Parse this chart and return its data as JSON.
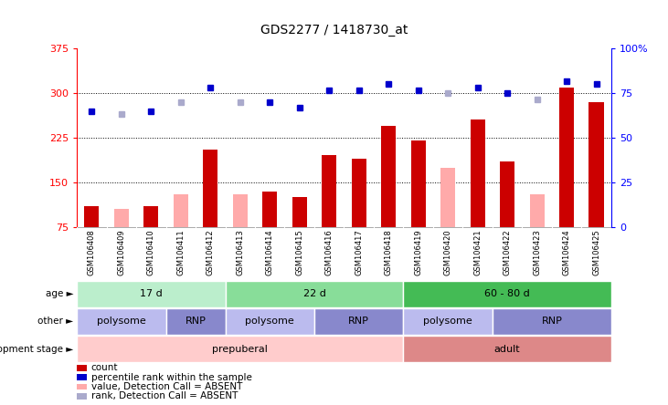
{
  "title": "GDS2277 / 1418730_at",
  "samples": [
    "GSM106408",
    "GSM106409",
    "GSM106410",
    "GSM106411",
    "GSM106412",
    "GSM106413",
    "GSM106414",
    "GSM106415",
    "GSM106416",
    "GSM106417",
    "GSM106418",
    "GSM106419",
    "GSM106420",
    "GSM106421",
    "GSM106422",
    "GSM106423",
    "GSM106424",
    "GSM106425"
  ],
  "bar_values": [
    110,
    null,
    110,
    null,
    205,
    null,
    135,
    125,
    195,
    190,
    245,
    220,
    null,
    255,
    185,
    null,
    310,
    285
  ],
  "bar_absent_values": [
    null,
    105,
    null,
    130,
    null,
    130,
    null,
    null,
    null,
    null,
    null,
    null,
    175,
    null,
    null,
    130,
    null,
    null
  ],
  "rank_values": [
    270,
    null,
    270,
    null,
    310,
    null,
    285,
    275,
    305,
    305,
    315,
    305,
    null,
    310,
    300,
    null,
    320,
    315
  ],
  "rank_absent_values": [
    null,
    265,
    null,
    285,
    null,
    285,
    null,
    null,
    null,
    null,
    null,
    null,
    300,
    null,
    null,
    290,
    null,
    null
  ],
  "ylim_left": [
    75,
    375
  ],
  "ylim_right": [
    0,
    100
  ],
  "yticks_left": [
    75,
    150,
    225,
    300,
    375
  ],
  "yticks_right": [
    0,
    25,
    50,
    75,
    100
  ],
  "ytick_labels_left": [
    "75",
    "150",
    "225",
    "300",
    "375"
  ],
  "ytick_labels_right": [
    "0",
    "25",
    "50",
    "75",
    "100%"
  ],
  "bar_color": "#cc0000",
  "bar_absent_color": "#ffaaaa",
  "rank_color": "#0000cc",
  "rank_absent_color": "#aaaacc",
  "age_groups": [
    {
      "label": "17 d",
      "start": 0,
      "end": 5,
      "color": "#bbeecc"
    },
    {
      "label": "22 d",
      "start": 5,
      "end": 11,
      "color": "#88dd99"
    },
    {
      "label": "60 - 80 d",
      "start": 11,
      "end": 18,
      "color": "#44bb55"
    }
  ],
  "other_groups": [
    {
      "label": "polysome",
      "start": 0,
      "end": 3,
      "color": "#bbbbee"
    },
    {
      "label": "RNP",
      "start": 3,
      "end": 5,
      "color": "#8888cc"
    },
    {
      "label": "polysome",
      "start": 5,
      "end": 8,
      "color": "#bbbbee"
    },
    {
      "label": "RNP",
      "start": 8,
      "end": 11,
      "color": "#8888cc"
    },
    {
      "label": "polysome",
      "start": 11,
      "end": 14,
      "color": "#bbbbee"
    },
    {
      "label": "RNP",
      "start": 14,
      "end": 18,
      "color": "#8888cc"
    }
  ],
  "dev_groups": [
    {
      "label": "prepuberal",
      "start": 0,
      "end": 11,
      "color": "#ffcccc"
    },
    {
      "label": "adult",
      "start": 11,
      "end": 18,
      "color": "#dd8888"
    }
  ],
  "row_labels": [
    "age",
    "other",
    "development stage"
  ],
  "legend": [
    {
      "label": "count",
      "color": "#cc0000"
    },
    {
      "label": "percentile rank within the sample",
      "color": "#0000cc"
    },
    {
      "label": "value, Detection Call = ABSENT",
      "color": "#ffaaaa"
    },
    {
      "label": "rank, Detection Call = ABSENT",
      "color": "#aaaacc"
    }
  ]
}
